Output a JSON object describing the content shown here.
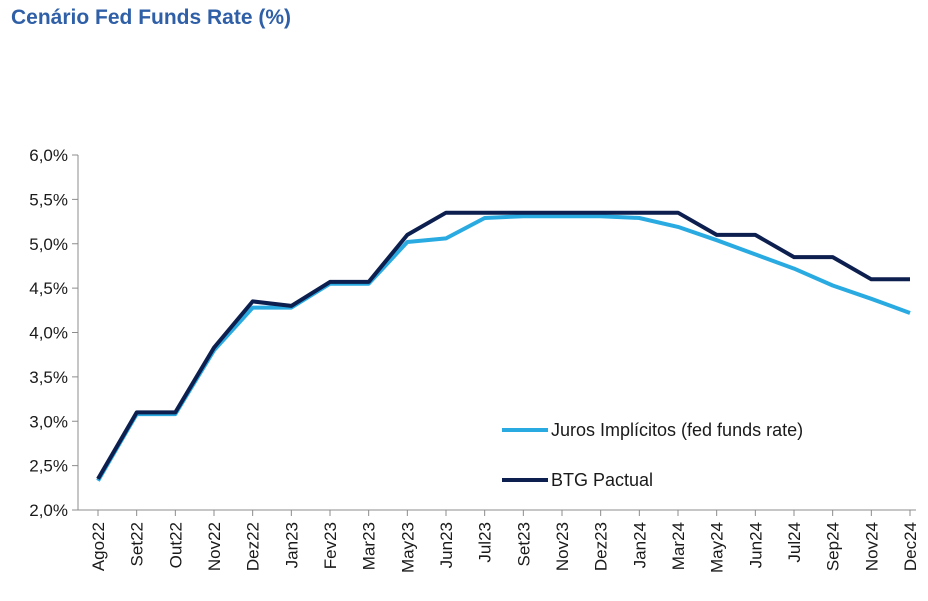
{
  "chart_data": {
    "type": "line",
    "title": "Cenário Fed Funds Rate (%)",
    "categories": [
      "Ago22",
      "Set22",
      "Out22",
      "Nov22",
      "Dez22",
      "Jan23",
      "Fev23",
      "Mar23",
      "May23",
      "Jun23",
      "Jul23",
      "Set23",
      "Nov23",
      "Dez23",
      "Jan24",
      "Mar24",
      "May24",
      "Jun24",
      "Jul24",
      "Sep24",
      "Nov24",
      "Dec24"
    ],
    "y_ticks": [
      "2,0%",
      "2,5%",
      "3,0%",
      "3,5%",
      "4,0%",
      "4,5%",
      "5,0%",
      "5,5%",
      "6,0%"
    ],
    "ylim": [
      2.0,
      6.0
    ],
    "y_step": 0.5,
    "series": [
      {
        "name": "Juros Implícitos (fed funds rate)",
        "color": "#29abe2",
        "values": [
          2.33,
          3.08,
          3.08,
          3.8,
          4.28,
          4.28,
          4.55,
          4.55,
          5.02,
          5.06,
          5.29,
          5.31,
          5.31,
          5.31,
          5.29,
          5.19,
          5.04,
          4.88,
          4.72,
          4.53,
          4.38,
          4.22
        ]
      },
      {
        "name": "BTG Pactual",
        "color": "#0d1f4f",
        "values": [
          2.35,
          3.1,
          3.1,
          3.83,
          4.35,
          4.3,
          4.57,
          4.57,
          5.1,
          5.35,
          5.35,
          5.35,
          5.35,
          5.35,
          5.35,
          5.35,
          5.1,
          5.1,
          4.85,
          4.85,
          4.6,
          4.6
        ]
      }
    ],
    "legend_position": "right-lower",
    "grid": false
  }
}
